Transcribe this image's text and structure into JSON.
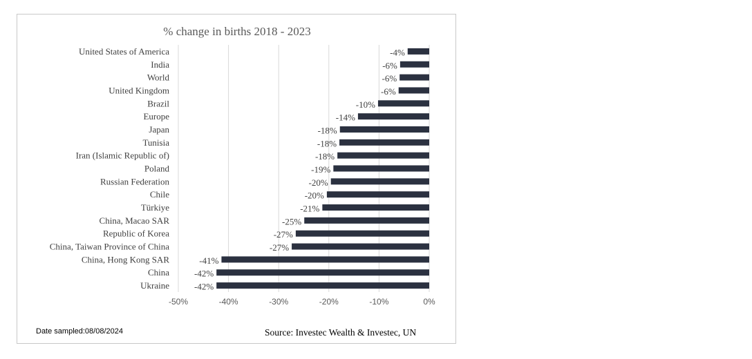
{
  "chart_data": {
    "type": "bar",
    "orientation": "horizontal",
    "title": "% change in births 2018 - 2023",
    "categories": [
      "United States of America",
      "India",
      "World",
      "United Kingdom",
      "Brazil",
      "Europe",
      "Japan",
      "Tunisia",
      "Iran (Islamic Republic of)",
      "Poland",
      "Russian Federation",
      "Chile",
      "Türkiye",
      "China, Macao SAR",
      "Republic of Korea",
      "China, Taiwan Province of China",
      "China, Hong Kong SAR",
      "China",
      "Ukraine"
    ],
    "values": [
      -4.3,
      -5.8,
      -5.9,
      -6.1,
      -10.2,
      -14.2,
      -17.8,
      -17.9,
      -18.3,
      -19.1,
      -19.6,
      -20.4,
      -21.3,
      -24.9,
      -26.6,
      -27.4,
      -41.4,
      -42.4,
      -42.4
    ],
    "data_labels": [
      "-4%",
      "-6%",
      "-6%",
      "-6%",
      "-10%",
      "-14%",
      "-18%",
      "-18%",
      "-18%",
      "-19%",
      "-20%",
      "-20%",
      "-21%",
      "-25%",
      "-27%",
      "-27%",
      "-41%",
      "-42%",
      "-42%"
    ],
    "xlim": [
      -50,
      0
    ],
    "xticks": [
      -50,
      -40,
      -30,
      -20,
      -10,
      0
    ],
    "xtick_labels": [
      "-50%",
      "-40%",
      "-30%",
      "-20%",
      "-10%",
      "0%"
    ],
    "xlabel": "",
    "ylabel": "",
    "grid": true,
    "bar_color": "#2b3140"
  },
  "footer": {
    "date_sampled": "Date sampled:08/08/2024",
    "source": "Source: Investec Wealth & Investec, UN"
  }
}
